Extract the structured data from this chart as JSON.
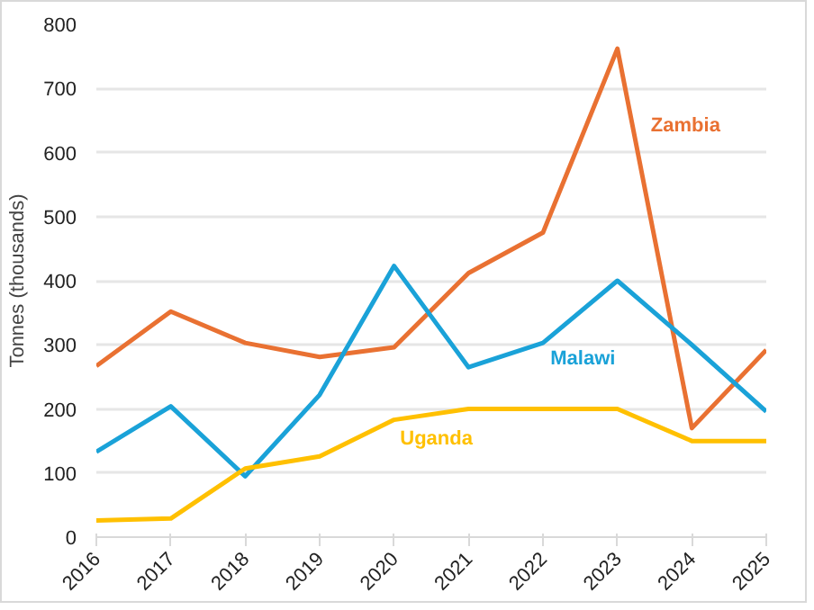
{
  "chart_data": {
    "type": "line",
    "ylabel": "Tonnes (thousands)",
    "x": [
      2016,
      2017,
      2018,
      2019,
      2020,
      2021,
      2022,
      2023,
      2024,
      2025
    ],
    "xlim": [
      2016,
      2025
    ],
    "xticks": [
      2016,
      2017,
      2018,
      2019,
      2020,
      2021,
      2022,
      2023,
      2024,
      2025
    ],
    "ylim": [
      0,
      800
    ],
    "yticks": [
      0,
      100,
      200,
      300,
      400,
      500,
      600,
      700,
      800
    ],
    "grid": "y",
    "legend": false,
    "marker": "none",
    "line_style": "solid",
    "series": [
      {
        "name": "Zambia",
        "color": "#e97132",
        "values": [
          267,
          352,
          303,
          281,
          296,
          412,
          475,
          762,
          170,
          292
        ]
      },
      {
        "name": "Malawi",
        "color": "#1aa2d8",
        "values": [
          133,
          204,
          95,
          222,
          423,
          265,
          303,
          400,
          300,
          196
        ]
      },
      {
        "name": "Uganda",
        "color": "#ffc000",
        "values": [
          26,
          29,
          107,
          126,
          183,
          200,
          200,
          200,
          150,
          150
        ]
      }
    ]
  }
}
